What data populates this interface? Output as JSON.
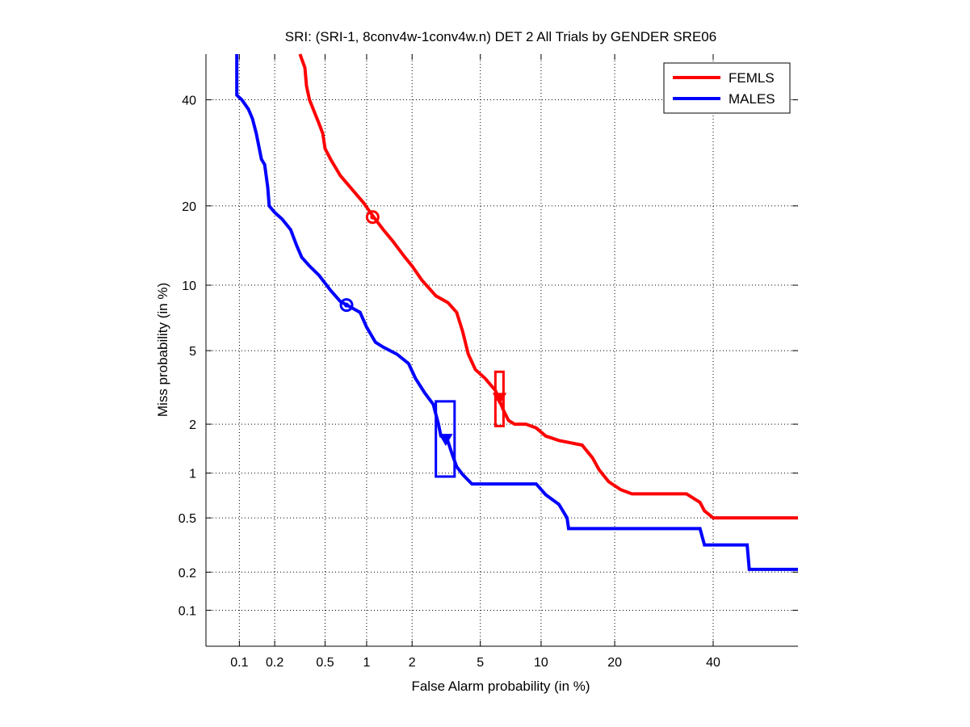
{
  "chart_data": {
    "type": "line",
    "title": "SRI: (SRI-1, 8conv4w-1conv4w.n) DET 2 All Trials by GENDER SRE06",
    "xlabel": "False Alarm probability (in %)",
    "ylabel": "Miss probability (in %)",
    "scale": "probit",
    "xlim": [
      0.05,
      60
    ],
    "ylim": [
      0.05,
      50
    ],
    "x_ticks": [
      0.1,
      0.2,
      0.5,
      1,
      2,
      5,
      10,
      20,
      40
    ],
    "x_tick_labels": [
      "0.1",
      "0.2",
      "0.5",
      "1",
      "2",
      "5",
      "10",
      "20",
      "40"
    ],
    "y_ticks": [
      0.1,
      0.2,
      0.5,
      1,
      2,
      5,
      10,
      20,
      40
    ],
    "y_tick_labels": [
      "0.1",
      "0.2",
      "0.5",
      "1",
      "2",
      "5",
      "10",
      "20",
      "40"
    ],
    "grid": true,
    "legend_position": "top-right",
    "series": [
      {
        "name": "FEMLS",
        "color": "#ff0000",
        "points": [
          [
            0.32,
            50
          ],
          [
            0.35,
            47
          ],
          [
            0.36,
            43
          ],
          [
            0.38,
            40
          ],
          [
            0.42,
            37
          ],
          [
            0.45,
            35
          ],
          [
            0.48,
            33
          ],
          [
            0.5,
            30
          ],
          [
            0.55,
            28
          ],
          [
            0.65,
            25
          ],
          [
            0.8,
            22.5
          ],
          [
            0.95,
            20.5
          ],
          [
            1.1,
            18.5
          ],
          [
            1.3,
            16.5
          ],
          [
            1.5,
            15
          ],
          [
            1.8,
            13
          ],
          [
            2.0,
            12
          ],
          [
            2.3,
            10.5
          ],
          [
            2.8,
            9
          ],
          [
            3.3,
            8.4
          ],
          [
            3.7,
            7.6
          ],
          [
            4.0,
            6.2
          ],
          [
            4.3,
            4.8
          ],
          [
            4.7,
            4.0
          ],
          [
            5.3,
            3.6
          ],
          [
            6.0,
            3.1
          ],
          [
            6.6,
            2.4
          ],
          [
            7.0,
            2.1
          ],
          [
            7.5,
            2.0
          ],
          [
            8.5,
            2.0
          ],
          [
            9.5,
            1.9
          ],
          [
            10.5,
            1.7
          ],
          [
            12,
            1.6
          ],
          [
            15,
            1.5
          ],
          [
            16.5,
            1.25
          ],
          [
            17.5,
            1.05
          ],
          [
            19,
            0.88
          ],
          [
            21,
            0.78
          ],
          [
            23,
            0.73
          ],
          [
            34,
            0.73
          ],
          [
            37,
            0.64
          ],
          [
            38,
            0.56
          ],
          [
            40,
            0.5
          ],
          [
            60,
            0.5
          ]
        ],
        "operating_point": {
          "x": 6.3,
          "y": 2.8,
          "box": {
            "x0": 6.0,
            "x1": 6.6,
            "y0": 1.95,
            "y1": 3.9
          }
        },
        "min_cost_point": {
          "x": 1.1,
          "y": 18.3
        }
      },
      {
        "name": "MALES",
        "color": "#0000ff",
        "points": [
          [
            0.095,
            50
          ],
          [
            0.095,
            41
          ],
          [
            0.105,
            40
          ],
          [
            0.12,
            38
          ],
          [
            0.13,
            36
          ],
          [
            0.14,
            33
          ],
          [
            0.155,
            28
          ],
          [
            0.165,
            27
          ],
          [
            0.175,
            23
          ],
          [
            0.18,
            20
          ],
          [
            0.2,
            19
          ],
          [
            0.23,
            18
          ],
          [
            0.27,
            16.5
          ],
          [
            0.3,
            14.5
          ],
          [
            0.33,
            13
          ],
          [
            0.38,
            12
          ],
          [
            0.45,
            11
          ],
          [
            0.55,
            9.5
          ],
          [
            0.65,
            8.5
          ],
          [
            0.75,
            8.1
          ],
          [
            0.9,
            7.6
          ],
          [
            1.0,
            6.5
          ],
          [
            1.15,
            5.5
          ],
          [
            1.3,
            5.2
          ],
          [
            1.6,
            4.8
          ],
          [
            1.9,
            4.3
          ],
          [
            2.1,
            3.6
          ],
          [
            2.4,
            3.0
          ],
          [
            2.7,
            2.6
          ],
          [
            2.9,
            2.0
          ],
          [
            3.0,
            1.7
          ],
          [
            3.25,
            1.65
          ],
          [
            3.5,
            1.3
          ],
          [
            3.7,
            1.1
          ],
          [
            4.0,
            0.98
          ],
          [
            4.5,
            0.85
          ],
          [
            9.5,
            0.85
          ],
          [
            10.5,
            0.72
          ],
          [
            12,
            0.62
          ],
          [
            13,
            0.5
          ],
          [
            13.2,
            0.42
          ],
          [
            37,
            0.42
          ],
          [
            38,
            0.32
          ],
          [
            48,
            0.32
          ],
          [
            48.5,
            0.21
          ],
          [
            60,
            0.21
          ]
        ],
        "operating_point": {
          "x": 3.2,
          "y": 1.62,
          "box": {
            "x0": 2.8,
            "x1": 3.6,
            "y0": 0.95,
            "y1": 2.7
          }
        },
        "min_cost_point": {
          "x": 0.72,
          "y": 8.2
        }
      }
    ]
  }
}
